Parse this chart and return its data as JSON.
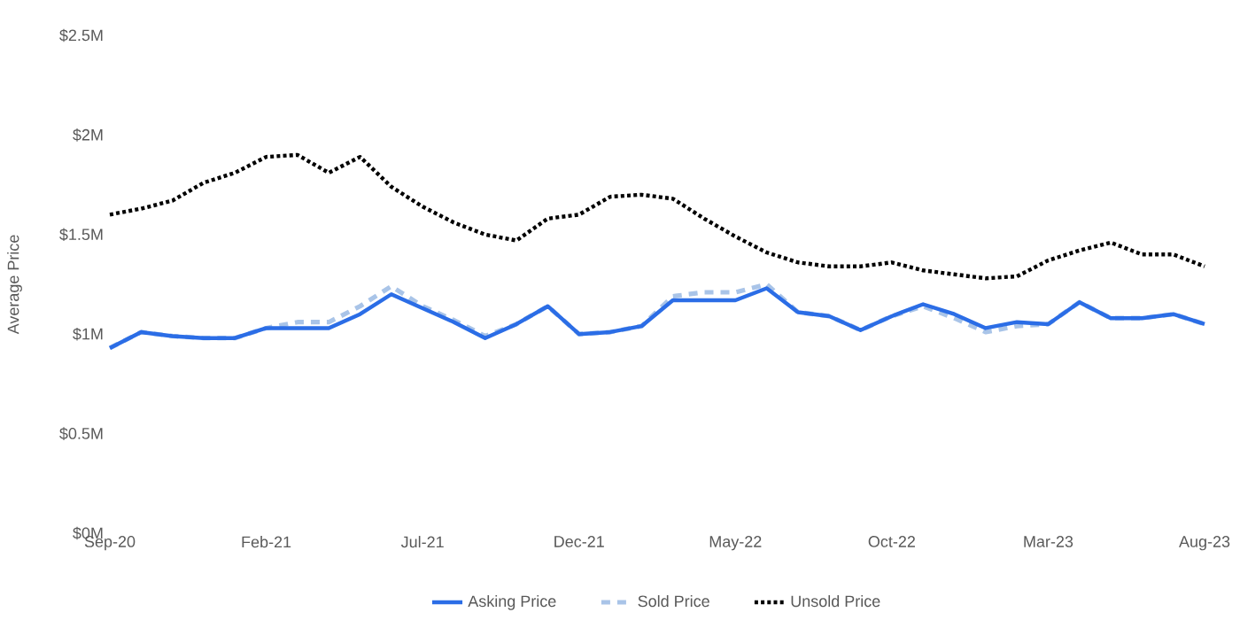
{
  "chart_data": {
    "type": "line",
    "ylabel": "Average Price",
    "categories": [
      "Sep-20",
      null,
      null,
      null,
      null,
      "Feb-21",
      null,
      null,
      null,
      null,
      "Jul-21",
      null,
      null,
      null,
      null,
      "Dec-21",
      null,
      null,
      null,
      null,
      "May-22",
      null,
      null,
      null,
      null,
      "Oct-22",
      null,
      null,
      null,
      null,
      "Mar-23",
      null,
      null,
      null,
      null,
      "Aug-23"
    ],
    "series": [
      {
        "name": "Asking Price",
        "color": "#2b6de6",
        "line_style": "solid",
        "values": [
          0.93,
          1.01,
          0.99,
          0.98,
          0.98,
          1.03,
          1.03,
          1.03,
          1.1,
          1.2,
          1.13,
          1.06,
          0.98,
          1.05,
          1.14,
          1.0,
          1.01,
          1.04,
          1.17,
          1.17,
          1.17,
          1.23,
          1.11,
          1.09,
          1.02,
          1.09,
          1.15,
          1.1,
          1.03,
          1.06,
          1.05,
          1.16,
          1.08,
          1.08,
          1.1,
          1.05
        ]
      },
      {
        "name": "Sold Price",
        "color": "#a9c4e8",
        "line_style": "dashed",
        "values": [
          0.93,
          1.01,
          0.99,
          0.98,
          0.98,
          1.03,
          1.06,
          1.06,
          1.14,
          1.24,
          1.14,
          1.07,
          0.99,
          1.05,
          1.14,
          1.0,
          1.01,
          1.04,
          1.19,
          1.21,
          1.21,
          1.25,
          1.11,
          1.09,
          1.02,
          1.09,
          1.14,
          1.08,
          1.01,
          1.04,
          1.05,
          1.16,
          1.08,
          1.08,
          1.1,
          1.05
        ]
      },
      {
        "name": "Unsold Price",
        "color": "#000000",
        "line_style": "dotted",
        "values": [
          1.6,
          1.63,
          1.67,
          1.76,
          1.81,
          1.89,
          1.9,
          1.81,
          1.89,
          1.74,
          1.64,
          1.56,
          1.5,
          1.47,
          1.58,
          1.6,
          1.69,
          1.7,
          1.68,
          1.58,
          1.49,
          1.41,
          1.36,
          1.34,
          1.34,
          1.36,
          1.32,
          1.3,
          1.28,
          1.29,
          1.37,
          1.42,
          1.46,
          1.4,
          1.4,
          1.34
        ]
      }
    ],
    "ylim": [
      0,
      2.5
    ],
    "yticks": [
      {
        "value": 0,
        "label": "$0M"
      },
      {
        "value": 0.5,
        "label": "$0.5M"
      },
      {
        "value": 1,
        "label": "$1M"
      },
      {
        "value": 1.5,
        "label": "$1.5M"
      },
      {
        "value": 2,
        "label": "$2M"
      },
      {
        "value": 2.5,
        "label": "$2.5M"
      }
    ],
    "legend": "bottom",
    "marker": "none",
    "grid": false
  }
}
